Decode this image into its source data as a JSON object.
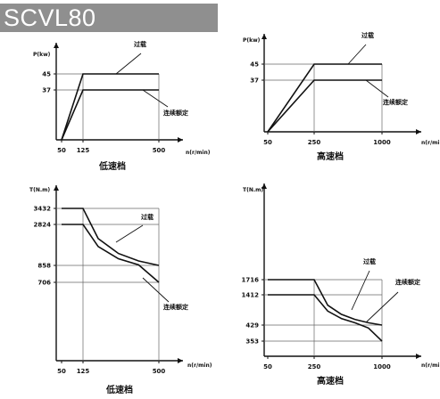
{
  "header": {
    "title": "SCVL80"
  },
  "colors": {
    "banner": "#8f8f8f",
    "banner_text": "#ffffff",
    "line": "#111111",
    "grid": "#666666"
  },
  "chart_data": [
    {
      "type": "line",
      "caption": "低速档",
      "ylabel": "P(kw)",
      "xlabel": "n(r/min)",
      "xticks": [
        50,
        125,
        500
      ],
      "yticks": [
        37,
        45
      ],
      "series": [
        {
          "label": "过载",
          "points": [
            [
              50,
              0
            ],
            [
              125,
              45
            ],
            [
              500,
              45
            ]
          ]
        },
        {
          "label": "连续额定",
          "points": [
            [
              50,
              0
            ],
            [
              125,
              37
            ],
            [
              500,
              37
            ]
          ]
        }
      ]
    },
    {
      "type": "line",
      "caption": "高速档",
      "ylabel": "P(kw)",
      "xlabel": "n(r/min)",
      "xticks": [
        50,
        250,
        1000
      ],
      "yticks": [
        37,
        45
      ],
      "series": [
        {
          "label": "过载",
          "points": [
            [
              50,
              0
            ],
            [
              250,
              45
            ],
            [
              1000,
              45
            ]
          ]
        },
        {
          "label": "连续额定",
          "points": [
            [
              50,
              0
            ],
            [
              250,
              37
            ],
            [
              1000,
              37
            ]
          ]
        }
      ]
    },
    {
      "type": "line",
      "caption": "低速档",
      "ylabel": "T(N.m)",
      "xlabel": "n(r/min)",
      "xticks": [
        50,
        125,
        500
      ],
      "yticks": [
        706,
        858,
        2824,
        3432
      ],
      "series": [
        {
          "label": "过载",
          "points": [
            [
              50,
              3432
            ],
            [
              125,
              3432
            ],
            [
              200,
              2145
            ],
            [
              300,
              1430
            ],
            [
              400,
              1073
            ],
            [
              500,
              858
            ]
          ]
        },
        {
          "label": "连续额定",
          "points": [
            [
              50,
              2824
            ],
            [
              125,
              2824
            ],
            [
              200,
              1765
            ],
            [
              300,
              1177
            ],
            [
              400,
              883
            ],
            [
              500,
              706
            ]
          ]
        }
      ]
    },
    {
      "type": "line",
      "caption": "高速档",
      "ylabel": "T(N.m)",
      "xlabel": "n(r/min)",
      "xticks": [
        50,
        250,
        1000
      ],
      "yticks": [
        353,
        429,
        1412,
        1716
      ],
      "series": [
        {
          "label": "过载",
          "points": [
            [
              50,
              1716
            ],
            [
              250,
              1716
            ],
            [
              400,
              1073
            ],
            [
              550,
              780
            ],
            [
              700,
              613
            ],
            [
              850,
              505
            ],
            [
              1000,
              429
            ]
          ]
        },
        {
          "label": "连续额定",
          "points": [
            [
              50,
              1412
            ],
            [
              250,
              1412
            ],
            [
              400,
              883
            ],
            [
              550,
              642
            ],
            [
              700,
              504
            ],
            [
              850,
              415
            ],
            [
              1000,
              353
            ]
          ]
        }
      ]
    }
  ]
}
